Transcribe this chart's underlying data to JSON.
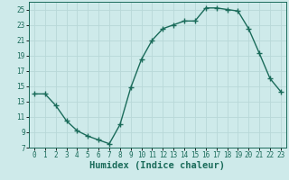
{
  "x": [
    0,
    1,
    2,
    3,
    4,
    5,
    6,
    7,
    8,
    9,
    10,
    11,
    12,
    13,
    14,
    15,
    16,
    17,
    18,
    19,
    20,
    21,
    22,
    23
  ],
  "y": [
    14.0,
    14.0,
    12.5,
    10.5,
    9.2,
    8.5,
    8.0,
    7.5,
    10.0,
    14.8,
    18.5,
    21.0,
    22.5,
    23.0,
    23.5,
    23.5,
    25.2,
    25.2,
    25.0,
    24.8,
    22.5,
    19.3,
    16.0,
    14.3
  ],
  "line_color": "#1a6b5a",
  "marker": "+",
  "marker_size": 4,
  "bg_color": "#ceeaea",
  "grid_color": "#b8d8d8",
  "xlabel": "Humidex (Indice chaleur)",
  "xlim": [
    -0.5,
    23.5
  ],
  "ylim": [
    7,
    26
  ],
  "yticks": [
    7,
    9,
    11,
    13,
    15,
    17,
    19,
    21,
    23,
    25
  ],
  "xticks": [
    0,
    1,
    2,
    3,
    4,
    5,
    6,
    7,
    8,
    9,
    10,
    11,
    12,
    13,
    14,
    15,
    16,
    17,
    18,
    19,
    20,
    21,
    22,
    23
  ],
  "tick_fontsize": 5.5,
  "xlabel_fontsize": 7.5
}
